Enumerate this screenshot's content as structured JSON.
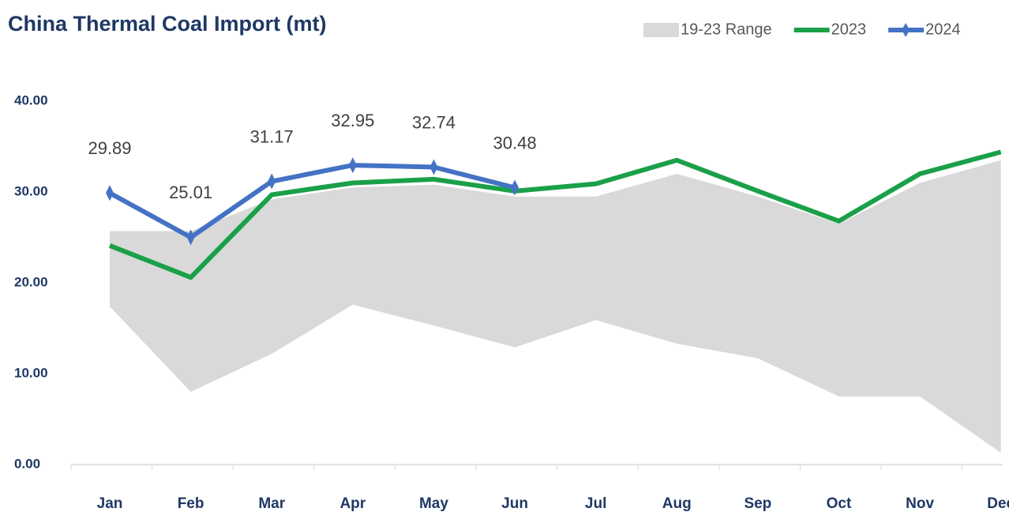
{
  "chart_data": {
    "type": "line",
    "title": "China Thermal Coal Import (mt)",
    "categories": [
      "Jan",
      "Feb",
      "Mar",
      "Apr",
      "May",
      "Jun",
      "Jul",
      "Aug",
      "Sep",
      "Oct",
      "Nov",
      "Dec"
    ],
    "ylim": [
      0,
      40
    ],
    "yticks": [
      {
        "value": 0,
        "label": "0.00"
      },
      {
        "value": 10,
        "label": "10.00"
      },
      {
        "value": 20,
        "label": "20.00"
      },
      {
        "value": 30,
        "label": "30.00"
      },
      {
        "value": 40,
        "label": "40.00"
      }
    ],
    "series": [
      {
        "name": "19-23 Range",
        "type": "range",
        "color": "#d9d9d9",
        "upper": [
          25.7,
          25.7,
          29.2,
          30.5,
          30.8,
          29.5,
          29.5,
          32,
          29.5,
          26.5,
          31,
          33.5
        ],
        "lower": [
          17.4,
          8.0,
          12.2,
          17.6,
          15.3,
          12.9,
          15.9,
          13.3,
          11.7,
          7.5,
          7.5,
          1.3
        ]
      },
      {
        "name": "2023",
        "color": "#1aa049",
        "values": [
          24.1,
          20.6,
          29.7,
          31.0,
          31.4,
          30.1,
          30.9,
          33.5,
          30.1,
          26.8,
          32.0,
          34.4
        ]
      },
      {
        "name": "2024",
        "color": "#4472c4",
        "values": [
          29.89,
          25.01,
          31.17,
          32.95,
          32.74,
          30.48,
          null,
          null,
          null,
          null,
          null,
          null
        ]
      }
    ]
  }
}
